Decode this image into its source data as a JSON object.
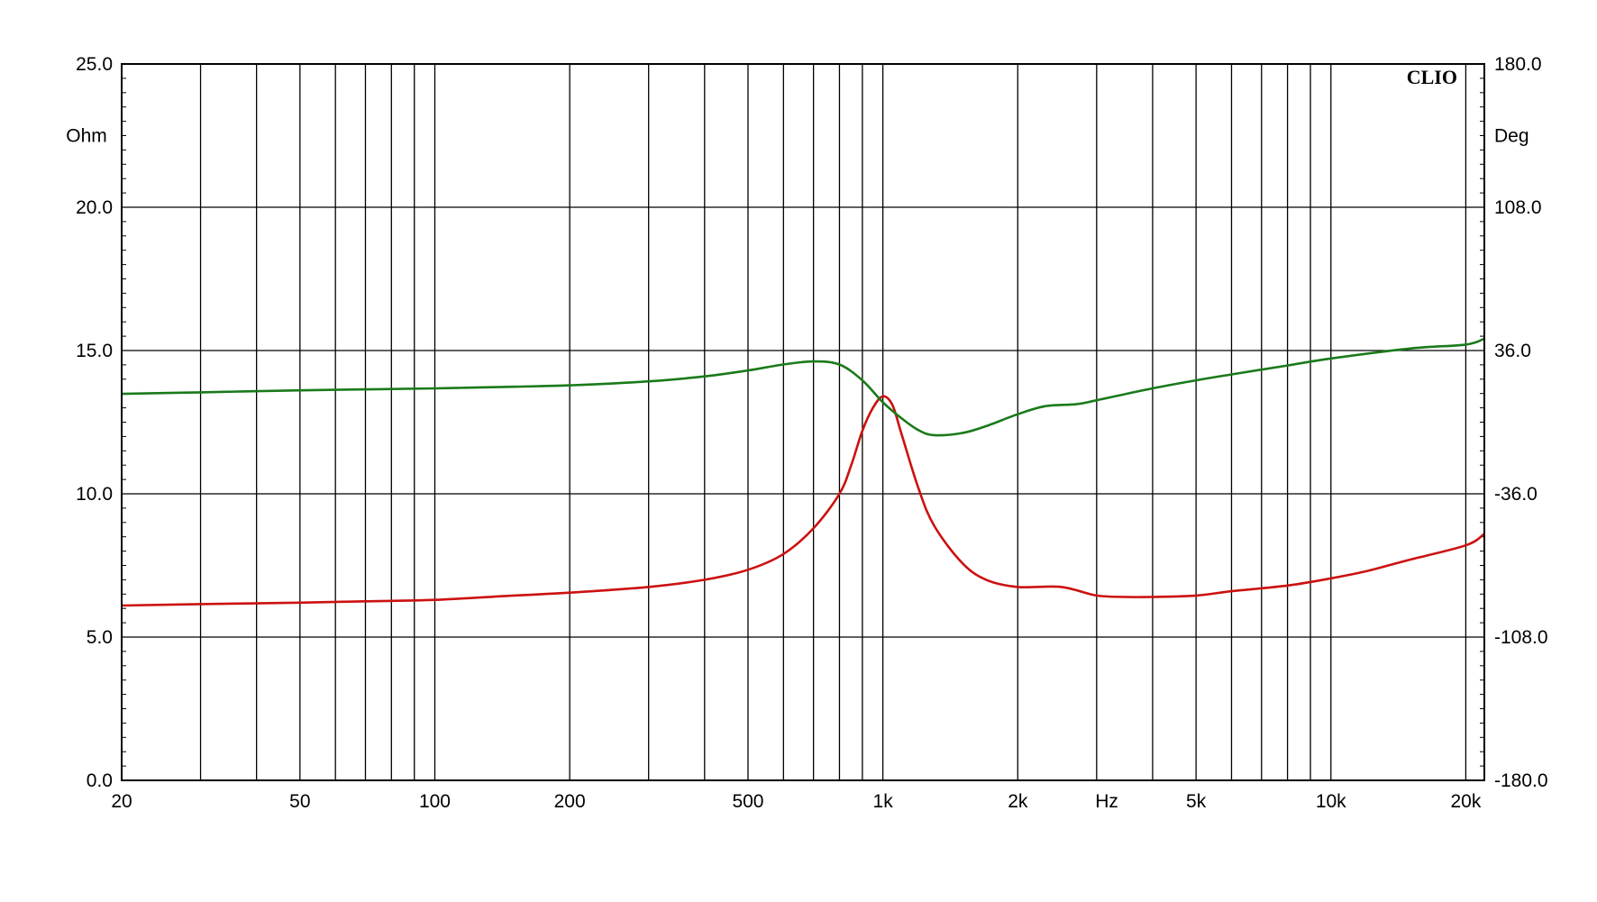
{
  "chart_data": {
    "type": "line",
    "brand": "CLIO",
    "xscale": "log",
    "xlim": [
      20,
      22000
    ],
    "xlabel": "Hz",
    "ylabel_left": "Ohm",
    "ylabel_right": "Deg",
    "ylim_left": [
      0,
      25
    ],
    "ylim_right": [
      -180,
      180
    ],
    "grid": true,
    "x_tick_labels": [
      {
        "value": 20,
        "label": "20"
      },
      {
        "value": 50,
        "label": "50"
      },
      {
        "value": 100,
        "label": "100"
      },
      {
        "value": 200,
        "label": "200"
      },
      {
        "value": 500,
        "label": "500"
      },
      {
        "value": 1000,
        "label": "1k"
      },
      {
        "value": 2000,
        "label": "2k"
      },
      {
        "value": 5000,
        "label": "5k"
      },
      {
        "value": 10000,
        "label": "10k"
      },
      {
        "value": 20000,
        "label": "20k"
      }
    ],
    "x_minor_grid": [
      30,
      40,
      60,
      70,
      80,
      90,
      300,
      400,
      600,
      700,
      800,
      900,
      3000,
      4000,
      6000,
      7000,
      8000,
      9000
    ],
    "y_left_ticks": [
      "0.0",
      "5.0",
      "10.0",
      "15.0",
      "20.0",
      "25.0"
    ],
    "y_right_ticks": [
      "-180.0",
      "-108.0",
      "-36.0",
      "36.0",
      "108.0",
      "180.0"
    ],
    "series": [
      {
        "axis": "left",
        "color": "#cc1111",
        "x": [
          20,
          30,
          50,
          70,
          100,
          150,
          200,
          300,
          400,
          500,
          600,
          700,
          800,
          850,
          900,
          950,
          1000,
          1050,
          1100,
          1200,
          1300,
          1500,
          1700,
          2000,
          2500,
          3000,
          3500,
          4000,
          5000,
          6000,
          8000,
          10000,
          12000,
          15000,
          20000,
          22000
        ],
        "y": [
          6.1,
          6.15,
          6.2,
          6.25,
          6.3,
          6.45,
          6.55,
          6.75,
          7.0,
          7.35,
          7.9,
          8.8,
          10.0,
          11.0,
          12.2,
          13.0,
          13.4,
          13.1,
          12.1,
          10.2,
          8.9,
          7.6,
          7.0,
          6.75,
          6.75,
          6.45,
          6.4,
          6.4,
          6.45,
          6.6,
          6.8,
          7.05,
          7.3,
          7.7,
          8.2,
          8.6
        ]
      },
      {
        "axis": "right",
        "color": "#1a7a1a",
        "x": [
          20,
          30,
          50,
          70,
          100,
          150,
          200,
          300,
          400,
          500,
          600,
          700,
          800,
          900,
          1000,
          1100,
          1200,
          1300,
          1500,
          1700,
          2000,
          2300,
          2700,
          3000,
          4000,
          5000,
          6000,
          8000,
          10000,
          15000,
          20000,
          22000
        ],
        "y": [
          14.2,
          15.0,
          16.0,
          16.5,
          17.0,
          17.8,
          18.5,
          20.5,
          23.0,
          26.0,
          29.0,
          30.5,
          29.0,
          21.0,
          10.0,
          2.0,
          -4.0,
          -6.5,
          -5.5,
          -2.0,
          4.0,
          8.0,
          9.0,
          11.0,
          17.0,
          21.0,
          24.0,
          28.5,
          32.0,
          37.0,
          39.0,
          42.0
        ]
      }
    ]
  }
}
